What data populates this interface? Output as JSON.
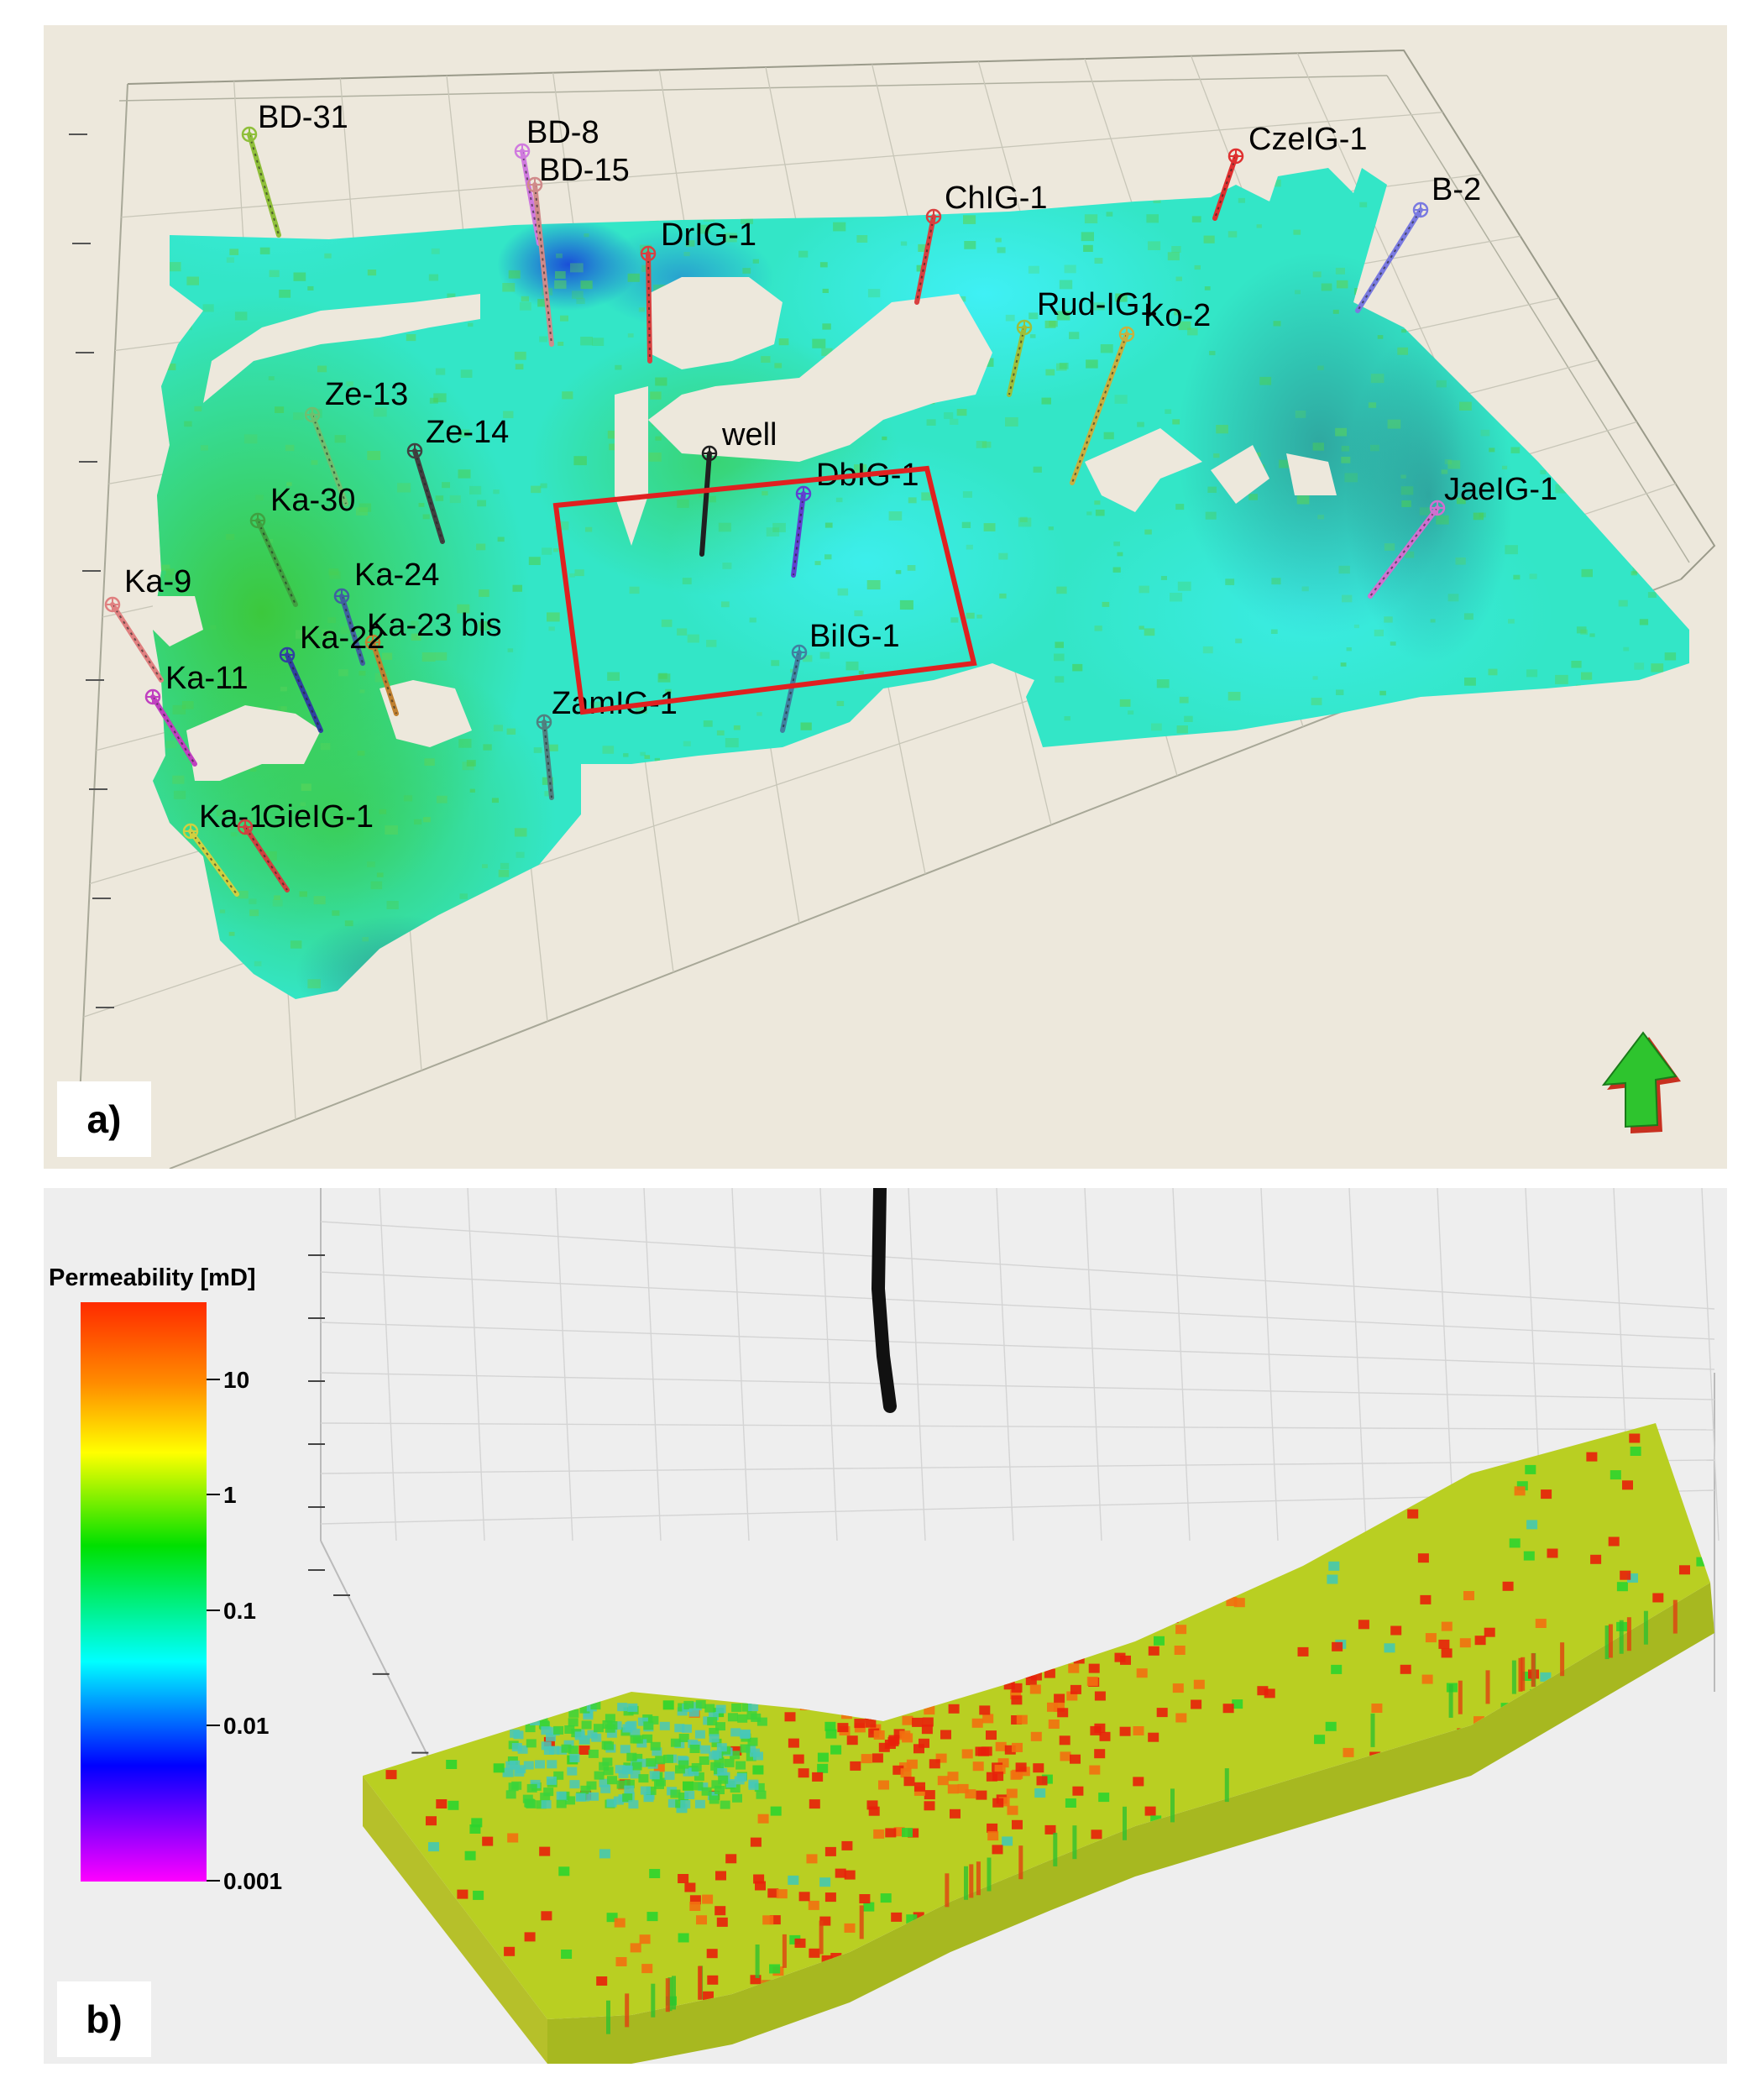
{
  "panel_a": {
    "tag": "a)",
    "wells": [
      {
        "name": "BD-31",
        "color": "#8fbf3a"
      },
      {
        "name": "BD-8",
        "color": "#d07adf"
      },
      {
        "name": "BD-15",
        "color": "#d08a8a"
      },
      {
        "name": "DrIG-1",
        "color": "#d94040"
      },
      {
        "name": "ChIG-1",
        "color": "#d94040"
      },
      {
        "name": "CzeIG-1",
        "color": "#e03030"
      },
      {
        "name": "B-2",
        "color": "#7a7ae0"
      },
      {
        "name": "Rud-IG1",
        "color": "#9fbf3a"
      },
      {
        "name": "Ko-2",
        "color": "#c8b040"
      },
      {
        "name": "Ze-13",
        "color": "#6fbf6f"
      },
      {
        "name": "Ze-14",
        "color": "#404040"
      },
      {
        "name": "well",
        "color": "#202020"
      },
      {
        "name": "DbIG-1",
        "color": "#6040d0"
      },
      {
        "name": "Ka-30",
        "color": "#40a040"
      },
      {
        "name": "Ka-24",
        "color": "#4060a0"
      },
      {
        "name": "Ka-9",
        "color": "#e08080"
      },
      {
        "name": "Ka-23 bis",
        "color": "#c08030"
      },
      {
        "name": "Ka-22",
        "color": "#3040a0"
      },
      {
        "name": "Ka-11",
        "color": "#c040c0"
      },
      {
        "name": "BiIG-1",
        "color": "#4080a0"
      },
      {
        "name": "ZamIG-1",
        "color": "#508080"
      },
      {
        "name": "JaeIG-1",
        "color": "#d070d0"
      },
      {
        "name": "Ka-1",
        "color": "#d0d040"
      },
      {
        "name": "GieIG-1",
        "color": "#d04040"
      }
    ],
    "selection_box_color": "#e02020",
    "north_arrow": "north-arrow-icon"
  },
  "panel_b": {
    "tag": "b)",
    "colorbar": {
      "title": "Permeability [mD]",
      "ticks": [
        "10",
        "1",
        "0.1",
        "0.01",
        "0.001"
      ],
      "colors": [
        "#ff2a00",
        "#ff8c00",
        "#ffff00",
        "#00e000",
        "#00ffff",
        "#0000ff",
        "#ff00ff"
      ]
    }
  }
}
